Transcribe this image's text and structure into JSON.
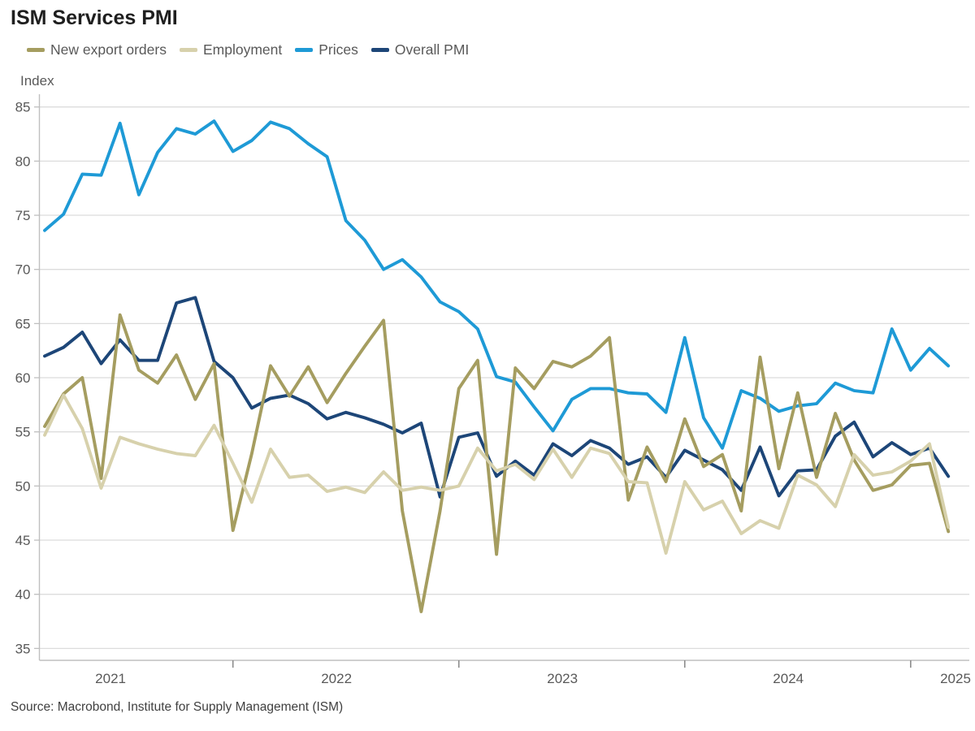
{
  "header": {
    "title": "ISM Services PMI"
  },
  "axis": {
    "y_label": "Index"
  },
  "legend": {
    "items": [
      {
        "label": "New export orders",
        "color": "#a59d60"
      },
      {
        "label": "Employment",
        "color": "#d7d1ac"
      },
      {
        "label": "Prices",
        "color": "#1e9ad6"
      },
      {
        "label": "Overall PMI",
        "color": "#1d4678"
      }
    ]
  },
  "source": {
    "text": "Source: Macrobond, Institute for Supply Management (ISM)"
  },
  "chart_data": {
    "type": "line",
    "title": "ISM Services PMI",
    "ylabel": "Index",
    "ylim": [
      35,
      85
    ],
    "ytick_step": 5,
    "grid": "horizontal",
    "legend_position": "top-left",
    "x_year_labels": [
      "2021",
      "2022",
      "2023",
      "2024",
      "2025"
    ],
    "months": [
      "2021-03",
      "2021-04",
      "2021-05",
      "2021-06",
      "2021-07",
      "2021-08",
      "2021-09",
      "2021-10",
      "2021-11",
      "2021-12",
      "2022-01",
      "2022-02",
      "2022-03",
      "2022-04",
      "2022-05",
      "2022-06",
      "2022-07",
      "2022-08",
      "2022-09",
      "2022-10",
      "2022-11",
      "2022-12",
      "2023-01",
      "2023-02",
      "2023-03",
      "2023-04",
      "2023-05",
      "2023-06",
      "2023-07",
      "2023-08",
      "2023-09",
      "2023-10",
      "2023-11",
      "2023-12",
      "2024-01",
      "2024-02",
      "2024-03",
      "2024-04",
      "2024-05",
      "2024-06",
      "2024-07",
      "2024-08",
      "2024-09",
      "2024-10",
      "2024-11",
      "2024-12",
      "2025-01",
      "2025-02",
      "2025-03"
    ],
    "series": [
      {
        "name": "New export orders",
        "color": "#a59d60",
        "values": [
          55.5,
          58.5,
          60.0,
          50.7,
          65.8,
          60.7,
          59.5,
          62.1,
          58.0,
          61.3,
          45.9,
          53.0,
          61.1,
          58.3,
          61.0,
          57.7,
          60.4,
          62.9,
          65.3,
          47.7,
          38.4,
          47.7,
          59.0,
          61.6,
          43.7,
          60.9,
          59.0,
          61.5,
          61.0,
          62.0,
          63.7,
          48.7,
          53.6,
          50.4,
          56.2,
          51.8,
          52.9,
          47.7,
          61.9,
          51.6,
          58.6,
          50.8,
          56.7,
          52.4,
          49.6,
          50.1,
          51.9,
          52.1,
          45.8
        ]
      },
      {
        "name": "Employment",
        "color": "#d7d1ac",
        "values": [
          54.7,
          58.4,
          55.3,
          49.8,
          54.5,
          53.9,
          53.4,
          53.0,
          52.8,
          55.6,
          52.1,
          48.5,
          53.4,
          50.8,
          51.0,
          49.5,
          49.9,
          49.4,
          51.3,
          49.6,
          49.9,
          49.6,
          50.0,
          53.5,
          51.4,
          52.0,
          50.6,
          53.4,
          50.8,
          53.5,
          53.0,
          50.4,
          50.3,
          43.8,
          50.4,
          47.8,
          48.6,
          45.6,
          46.8,
          46.1,
          51.0,
          50.1,
          48.1,
          52.9,
          51.0,
          51.3,
          52.3,
          53.9,
          46.2
        ]
      },
      {
        "name": "Prices",
        "color": "#1e9ad6",
        "values": [
          73.6,
          75.1,
          78.8,
          78.7,
          83.5,
          76.9,
          80.8,
          83.0,
          82.5,
          83.7,
          80.9,
          81.9,
          83.6,
          83.0,
          81.6,
          80.4,
          74.5,
          72.7,
          70.0,
          70.9,
          69.3,
          67.0,
          66.1,
          64.5,
          60.1,
          59.6,
          57.3,
          55.1,
          58.0,
          59.0,
          59.0,
          58.6,
          58.5,
          56.8,
          63.7,
          56.3,
          53.5,
          58.8,
          58.1,
          56.9,
          57.4,
          57.6,
          59.5,
          58.8,
          58.6,
          64.5,
          60.7,
          62.7,
          61.1
        ]
      },
      {
        "name": "Overall PMI",
        "color": "#1d4678",
        "values": [
          62.0,
          62.8,
          64.2,
          61.3,
          63.5,
          61.6,
          61.6,
          66.9,
          67.4,
          61.5,
          60.0,
          57.2,
          58.1,
          58.4,
          57.6,
          56.2,
          56.8,
          56.3,
          55.7,
          54.9,
          55.8,
          49.0,
          54.5,
          54.9,
          50.9,
          52.3,
          51.0,
          53.9,
          52.8,
          54.2,
          53.5,
          52.0,
          52.7,
          50.8,
          53.3,
          52.4,
          51.5,
          49.6,
          53.6,
          49.1,
          51.4,
          51.5,
          54.6,
          55.9,
          52.7,
          54.0,
          52.9,
          53.5,
          50.9
        ]
      }
    ]
  }
}
